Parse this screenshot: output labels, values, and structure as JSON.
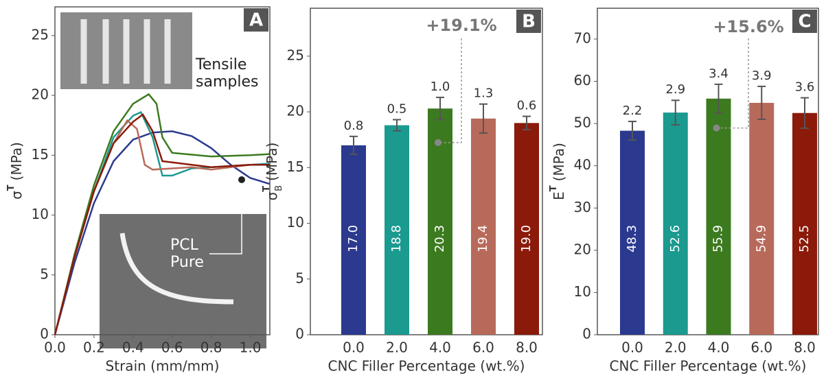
{
  "chart_data": [
    {
      "type": "line",
      "panel_label": "A",
      "x_label": "Strain (mm/mm)",
      "y_label": {
        "base": "σ",
        "sup": "T",
        "unit": "(MPa)"
      },
      "xlim": [
        0,
        1.1
      ],
      "xticks": [
        {
          "value": 0,
          "label": "0.0"
        },
        {
          "value": 0.2,
          "label": "0.2"
        },
        {
          "value": 0.4,
          "label": "0.4"
        },
        {
          "value": 0.6,
          "label": "0.6"
        },
        {
          "value": 0.8,
          "label": "0.8"
        },
        {
          "value": 1,
          "label": "1.0"
        }
      ],
      "ylim": [
        0,
        27.4
      ],
      "yticks": [
        0,
        5,
        10,
        15,
        20,
        25
      ],
      "annotations": [
        "Tensile",
        "samples",
        "PCL",
        "Pure"
      ],
      "series": [
        {
          "color": "#2b3a8f",
          "x": [
            0,
            0.1,
            0.2,
            0.3,
            0.4,
            0.5,
            0.6,
            0.7,
            0.8,
            0.9,
            1.0,
            1.1
          ],
          "values": [
            0,
            6,
            11,
            14.5,
            16.3,
            16.9,
            17.0,
            16.6,
            15.6,
            14.2,
            13.1,
            12.6
          ]
        },
        {
          "color": "#1b9a8f",
          "x": [
            0,
            0.1,
            0.2,
            0.3,
            0.4,
            0.44,
            0.5,
            0.55,
            0.6,
            0.7,
            0.8,
            1.0,
            1.1
          ],
          "values": [
            0,
            6.5,
            12,
            16.5,
            18.3,
            18.6,
            16.5,
            13.3,
            13.3,
            13.9,
            14.0,
            14.2,
            14.3
          ]
        },
        {
          "color": "#3c7a1f",
          "x": [
            0,
            0.1,
            0.2,
            0.3,
            0.4,
            0.48,
            0.52,
            0.55,
            0.6,
            0.8,
            1.0,
            1.1
          ],
          "values": [
            0,
            6.7,
            12.5,
            17,
            19.3,
            20.1,
            19.3,
            16.5,
            15.2,
            14.9,
            15.0,
            15.1
          ]
        },
        {
          "color": "#b86a5a",
          "x": [
            0,
            0.1,
            0.2,
            0.3,
            0.37,
            0.42,
            0.46,
            0.5,
            0.7,
            0.8,
            1.0,
            1.1
          ],
          "values": [
            0,
            6.5,
            12,
            16,
            17.9,
            17.2,
            14.2,
            13.8,
            14.0,
            13.8,
            14.2,
            14.2
          ]
        },
        {
          "color": "#8b1a0a",
          "x": [
            0,
            0.1,
            0.2,
            0.3,
            0.4,
            0.45,
            0.5,
            0.55,
            0.7,
            0.8,
            1.0,
            1.1
          ],
          "values": [
            0,
            6.5,
            12,
            16,
            17.8,
            18.4,
            17,
            14.5,
            14.2,
            14.0,
            14.2,
            14.2
          ]
        }
      ]
    },
    {
      "type": "bar",
      "panel_label": "B",
      "x_label": "CNC Filler Percentage (wt.%)",
      "y_label": {
        "base": "σ",
        "sup": "T",
        "sub": "B",
        "unit": "(MPa)"
      },
      "categories": [
        "0.0",
        "2.0",
        "4.0",
        "6.0",
        "8.0"
      ],
      "values": [
        17.0,
        18.8,
        20.3,
        19.4,
        19.0
      ],
      "value_labels": [
        "17.0",
        "18.8",
        "20.3",
        "19.4",
        "19.0"
      ],
      "errors": [
        0.8,
        0.5,
        1.0,
        1.3,
        0.6
      ],
      "error_labels": [
        "0.8",
        "0.5",
        "1.0",
        "1.3",
        "0.6"
      ],
      "colors": [
        "#2b3a8f",
        "#1b9a8f",
        "#3c7a1f",
        "#b86a5a",
        "#8b1a0a"
      ],
      "ylim": [
        0,
        29.3
      ],
      "yticks": [
        0,
        5,
        10,
        15,
        20,
        25
      ],
      "annotations": [
        "+19.1%"
      ]
    },
    {
      "type": "bar",
      "panel_label": "C",
      "x_label": "CNC Filler Percentage (wt.%)",
      "y_label": {
        "base": "E",
        "sup": "T",
        "unit": "(MPa)"
      },
      "categories": [
        "0.0",
        "2.0",
        "4.0",
        "6.0",
        "8.0"
      ],
      "values": [
        48.3,
        52.6,
        55.9,
        54.9,
        52.5
      ],
      "errors": [
        2.2,
        2.9,
        3.4,
        3.9,
        3.6
      ],
      "colors": [
        "#2b3a8f",
        "#1b9a8f",
        "#3c7a1f",
        "#b86a5a",
        "#8b1a0a"
      ],
      "ylim": [
        0,
        77.3
      ],
      "yticks": [
        0,
        10,
        20,
        30,
        40,
        50,
        60,
        70
      ],
      "annotations": [
        "+15.6%"
      ]
    }
  ]
}
